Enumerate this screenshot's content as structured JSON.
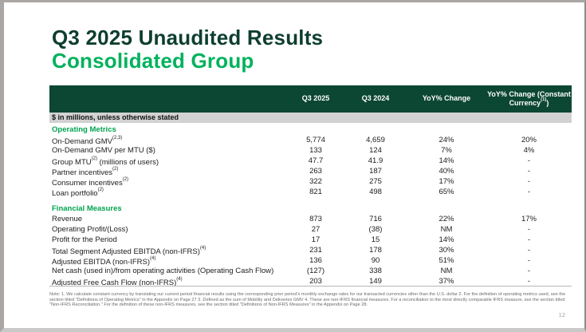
{
  "page": {
    "number": "12"
  },
  "header": {
    "title_line1": "Q3 2025 Unaudited Results",
    "title_line2": "Consolidated Group"
  },
  "table": {
    "units_note": "$ in millions, unless otherwise stated",
    "columns": [
      {
        "label": "Q3 2025"
      },
      {
        "label": "Q3 2024"
      },
      {
        "label": "YoY% Change"
      },
      {
        "label": "YoY% Change (Constant Currency",
        "sup": "(1)",
        "tail": ")"
      }
    ],
    "sections": [
      {
        "title": "Operating Metrics",
        "rows": [
          {
            "label": "On-Demand GMV",
            "sup": "(2,3)",
            "suffix": "",
            "values": [
              "5,774",
              "4,659",
              "24%",
              "20%"
            ]
          },
          {
            "label": "On-Demand GMV per MTU ($)",
            "sup": "",
            "suffix": "",
            "values": [
              "133",
              "124",
              "7%",
              "4%"
            ]
          },
          {
            "label": "Group MTU",
            "sup": "(2)",
            "suffix": " (millions of users)",
            "values": [
              "47.7",
              "41.9",
              "14%",
              "-"
            ]
          },
          {
            "label": "Partner incentives",
            "sup": "(2)",
            "suffix": "",
            "values": [
              "263",
              "187",
              "40%",
              "-"
            ]
          },
          {
            "label": "Consumer incentives",
            "sup": "(2)",
            "suffix": "",
            "values": [
              "322",
              "275",
              "17%",
              "-"
            ]
          },
          {
            "label": "Loan portfolio",
            "sup": "(2)",
            "suffix": "",
            "values": [
              "821",
              "498",
              "65%",
              "-"
            ]
          }
        ]
      },
      {
        "title": "Financial Measures",
        "rows": [
          {
            "label": "Revenue",
            "sup": "",
            "suffix": "",
            "values": [
              "873",
              "716",
              "22%",
              "17%"
            ]
          },
          {
            "label": "Operating Profit/(Loss)",
            "sup": "",
            "suffix": "",
            "values": [
              "27",
              "(38)",
              "NM",
              "-"
            ]
          },
          {
            "label": "Profit for the Period",
            "sup": "",
            "suffix": "",
            "values": [
              "17",
              "15",
              "14%",
              "-"
            ]
          },
          {
            "label": "Total Segment Adjusted EBITDA (non-IFRS)",
            "sup": "(4)",
            "suffix": "",
            "values": [
              "231",
              "178",
              "30%",
              "-"
            ]
          },
          {
            "label": "Adjusted EBITDA (non-IFRS)",
            "sup": "(4)",
            "suffix": "",
            "values": [
              "136",
              "90",
              "51%",
              "-"
            ]
          },
          {
            "label": "Net cash (used in)/from operating activities (Operating Cash Flow)",
            "sup": "",
            "suffix": "",
            "values": [
              "(127)",
              "338",
              "NM",
              "-"
            ]
          },
          {
            "label": "Adjusted Free Cash Flow (non-IFRS)",
            "sup": "(4)",
            "suffix": "",
            "values": [
              "203",
              "149",
              "37%",
              "-"
            ]
          }
        ]
      }
    ]
  },
  "footnote": "Note: 1. We calculate constant currency by translating our current period financial results using the corresponding prior period's monthly exchange rates for our transacted currencies other than the U.S. dollar 2. For the definition of operating metrics used, see the section titled \"Definitions of Operating Metrics\" in the Appendix on Page 27 3. Defined as the sum of Mobility and Deliveries GMV 4. These are non-IFRS financial measures. For a reconciliation to the most directly comparable IFRS measure, see the section titled \"Non-IFRS Reconciliation.\" For the definition of these non-IFRS measures, see the section titled \"Definitions of Non-IFRS Measures\" in the Appendix on Page 28.",
  "colors": {
    "title_dark_green": "#0e3e30",
    "brand_green": "#00b25d",
    "section_green": "#00a350",
    "header_bar_green": "#0c4733",
    "units_band_gray": "#d2d2d2"
  }
}
